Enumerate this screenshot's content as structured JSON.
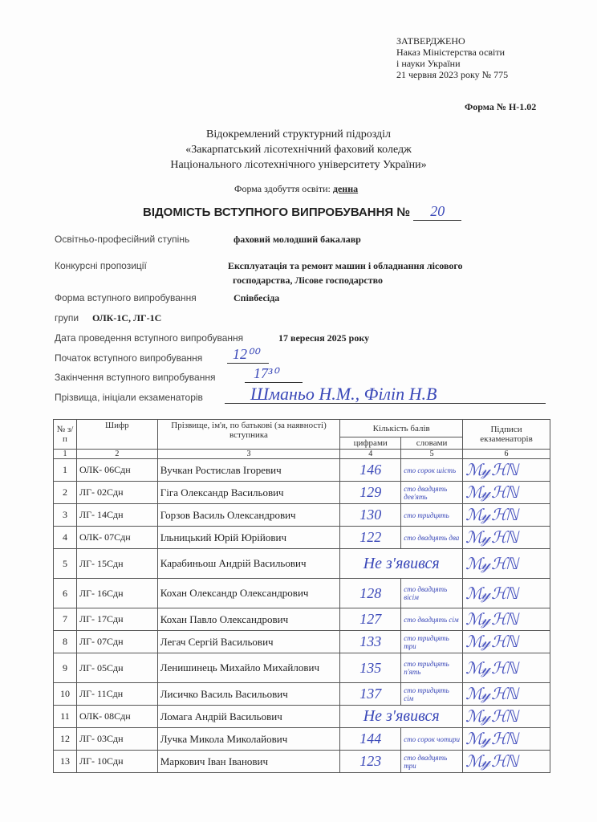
{
  "approval": {
    "title": "ЗАТВЕРДЖЕНО",
    "line1": "Наказ Міністерства освіти",
    "line2": "і науки України",
    "line3": "21 червня 2023 року № 775"
  },
  "form_number": "Форма № Н-1.02",
  "institution": {
    "line1": "Відокремлений структурний підрозділ",
    "line2": "«Закарпатський лісотехнічний фаховий  коледж",
    "line3": "Національного  лісотехнічного  університету України»"
  },
  "education_form": {
    "label": "Форма здобуття освіти:",
    "value": "денна"
  },
  "title": {
    "text": "ВІДОМІСТЬ ВСТУПНОГО ВИПРОБУВАННЯ №",
    "number": "20"
  },
  "fields": {
    "degree": {
      "label": "Освітньо-професійний ступінь",
      "value": "фаховий молодший бакалавр"
    },
    "proposals": {
      "label": "Конкурсні пропозиції",
      "value1": "Експлуатація та ремонт машин і обладнання лісового",
      "value2": "господарства,  Лісове господарство"
    },
    "exam_form": {
      "label": "Форма вступного випробування",
      "value": "Співбесіда"
    },
    "groups": {
      "label": "групи",
      "value": "ОЛК-1С,  ЛГ-1С"
    },
    "date": {
      "label": "Дата проведення вступного випробування",
      "value": "17 вересня  2025 року"
    },
    "start": {
      "label": "Початок вступного випробування",
      "value": "12⁰⁰"
    },
    "end": {
      "label": "Закінчення вступного випробування",
      "value": "17³⁰"
    },
    "examiners": {
      "label": "Прізвища, ініціали екзаменаторів",
      "value": "Шманьо Н.М., Філіп Н.В"
    }
  },
  "table": {
    "headers": {
      "no": "№ з/п",
      "code": "Шифр",
      "name": "Прізвище, ім'я, по батькові (за наявності) вступника",
      "score": "Кількість балів",
      "digits": "цифрами",
      "words": "словами",
      "signatures": "Підписи екзаменаторів"
    },
    "col_numbers": [
      "1",
      "2",
      "3",
      "4",
      "5",
      "6"
    ],
    "rows": [
      {
        "no": "1",
        "code": "ОЛК- 06Сдн",
        "name": "Вучкан Ростислав Ігоревич",
        "digits": "146",
        "words": "сто сорок шість"
      },
      {
        "no": "2",
        "code": "ЛГ- 02Сдн",
        "name": "Гіга Олександр Васильович",
        "digits": "129",
        "words": "сто двадцять дев'ять"
      },
      {
        "no": "3",
        "code": "ЛГ- 14Сдн",
        "name": "Горзов Василь Олександрович",
        "digits": "130",
        "words": "сто тридцять"
      },
      {
        "no": "4",
        "code": "ОЛК- 07Сдн",
        "name": "Ільницький Юрій Юрійович",
        "digits": "122",
        "words": "сто двадцять два"
      },
      {
        "no": "5",
        "code": "ЛГ- 15Сдн",
        "name": "Карабиньош Андрій Васильович",
        "digits": "Не з'явився",
        "words": ""
      },
      {
        "no": "6",
        "code": "ЛГ- 16Сдн",
        "name": "Кохан Олександр Олександрович",
        "digits": "128",
        "words": "сто двадцять вісім"
      },
      {
        "no": "7",
        "code": "ЛГ- 17Сдн",
        "name": "Кохан Павло Олександрович",
        "digits": "127",
        "words": "сто двадцять сім"
      },
      {
        "no": "8",
        "code": "ЛГ- 07Сдн",
        "name": "Легач Сергій Васильович",
        "digits": "133",
        "words": "сто тридцять три"
      },
      {
        "no": "9",
        "code": "ЛГ- 05Сдн",
        "name": "Ленишинець Михайло Михайлович",
        "digits": "135",
        "words": "сто тридцять п'ять"
      },
      {
        "no": "10",
        "code": "ЛГ- 11Сдн",
        "name": "Лисичко Василь Васильович",
        "digits": "137",
        "words": "сто тридцять сім"
      },
      {
        "no": "11",
        "code": "ОЛК- 08Сдн",
        "name": "Ломага Андрій Васильович",
        "digits": "Не з'явився",
        "words": ""
      },
      {
        "no": "12",
        "code": "ЛГ- 03Сдн",
        "name": "Лучка Микола Миколайович",
        "digits": "144",
        "words": "сто сорок чотири"
      },
      {
        "no": "13",
        "code": "ЛГ- 10Сдн",
        "name": "Маркович Іван Іванович",
        "digits": "123",
        "words": "сто двадцять три"
      }
    ]
  }
}
